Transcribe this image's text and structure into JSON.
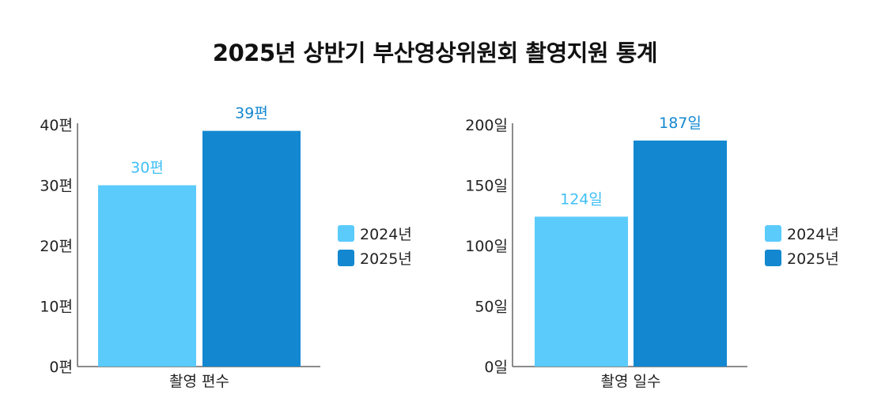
{
  "title": "2025년 상반기 부산영상위원회 촬영지원 통계",
  "colors": {
    "2024": "#5bcbfb",
    "2025": "#1388d0",
    "label2024": "#3fc0f5",
    "label2025": "#1388d0"
  },
  "chart_data": [
    {
      "type": "bar",
      "title": "",
      "categories": [
        "촬영 편수"
      ],
      "series": [
        {
          "name": "2024년",
          "values": [
            30
          ],
          "labels": [
            "30편"
          ]
        },
        {
          "name": "2025년",
          "values": [
            39
          ],
          "labels": [
            "39편"
          ]
        }
      ],
      "ylim": [
        0,
        40
      ],
      "yticks": [
        0,
        10,
        20,
        30,
        40
      ],
      "ytick_labels": [
        "0편",
        "10편",
        "20편",
        "30편",
        "40편"
      ],
      "legend": [
        "2024년",
        "2025년"
      ],
      "legend_position": "right"
    },
    {
      "type": "bar",
      "title": "",
      "categories": [
        "촬영 일수"
      ],
      "series": [
        {
          "name": "2024년",
          "values": [
            124
          ],
          "labels": [
            "124일"
          ]
        },
        {
          "name": "2025년",
          "values": [
            187
          ],
          "labels": [
            "187일"
          ]
        }
      ],
      "ylim": [
        0,
        200
      ],
      "yticks": [
        0,
        50,
        100,
        150,
        200
      ],
      "ytick_labels": [
        "0일",
        "50일",
        "100일",
        "150일",
        "200일"
      ],
      "legend": [
        "2024년",
        "2025년"
      ],
      "legend_position": "right"
    }
  ]
}
